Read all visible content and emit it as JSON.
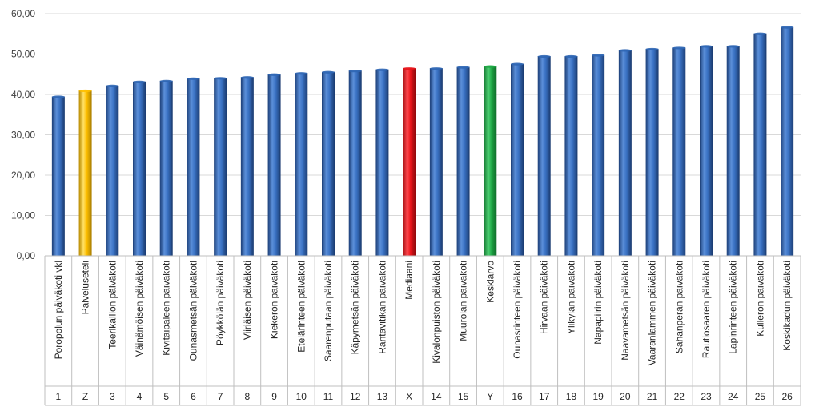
{
  "chart_data": {
    "type": "bar",
    "title": "",
    "xlabel": "",
    "ylabel": "",
    "ylim": [
      0,
      60
    ],
    "yticks": [
      "0,00",
      "10,00",
      "20,00",
      "30,00",
      "40,00",
      "50,00",
      "60,00"
    ],
    "grid": true,
    "categories": [
      "Poropolun päiväkoti vkl",
      "Palveluseteli",
      "Teerikallion päiväkoti",
      "Väinämöisen päiväkoti",
      "Kivitaipaleen päiväkoti",
      "Ounasmetsän päiväkoti",
      "Pöykkölän päiväkoti",
      "Viiriäisen päiväkoti",
      "Kiekerön päiväkoti",
      "Etelärinteen päiväkoti",
      "Saarenputaan päiväkoti",
      "Käpymetsän päiväkoti",
      "Rantavitikan päiväkoti",
      "Mediaani",
      "Kivalonpuiston päiväkoti",
      "Muurolan päiväkoti",
      "Keskiarvo",
      "Ounasrinteen päiväkoti",
      "Hirvaan päiväkoti",
      "Ylikylän päiväkoti",
      "Napapiirin päiväkoti",
      "Naavametsän päiväkoti",
      "Vaaranlammen päiväkoti",
      "Sahanperän päiväkoti",
      "Rautiosaaren päiväkoti",
      "Lapinrinteen päiväkoti",
      "Kulleron päiväkoti",
      "Koskikadun päiväkoti"
    ],
    "codes": [
      "1",
      "Z",
      "3",
      "4",
      "5",
      "6",
      "7",
      "8",
      "9",
      "10",
      "11",
      "12",
      "13",
      "X",
      "14",
      "15",
      "Y",
      "16",
      "17",
      "18",
      "19",
      "20",
      "21",
      "22",
      "23",
      "24",
      "25",
      "26"
    ],
    "values": [
      39.5,
      41.0,
      42.2,
      43.2,
      43.4,
      44.0,
      44.1,
      44.3,
      45.0,
      45.3,
      45.6,
      45.9,
      46.2,
      46.5,
      46.5,
      46.8,
      47.0,
      47.6,
      49.5,
      49.5,
      49.8,
      51.0,
      51.3,
      51.6,
      52.0,
      52.0,
      55.1,
      56.7
    ],
    "bar_colors": [
      "#2f66b4",
      "#ffc000",
      "#2f66b4",
      "#2f66b4",
      "#2f66b4",
      "#2f66b4",
      "#2f66b4",
      "#2f66b4",
      "#2f66b4",
      "#2f66b4",
      "#2f66b4",
      "#2f66b4",
      "#2f66b4",
      "#e8141a",
      "#2f66b4",
      "#2f66b4",
      "#1ea845",
      "#2f66b4",
      "#2f66b4",
      "#2f66b4",
      "#2f66b4",
      "#2f66b4",
      "#2f66b4",
      "#2f66b4",
      "#2f66b4",
      "#2f66b4",
      "#2f66b4",
      "#2f66b4"
    ]
  }
}
